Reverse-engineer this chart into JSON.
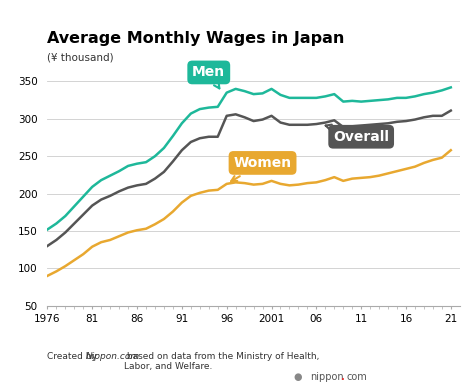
{
  "title": "Average Monthly Wages in Japan",
  "ylabel": "(¥ thousand)",
  "background_color": "#ffffff",
  "colors": {
    "men": "#1eb89a",
    "overall": "#555555",
    "women": "#e8a830"
  },
  "years": [
    1976,
    1977,
    1978,
    1979,
    1980,
    1981,
    1982,
    1983,
    1984,
    1985,
    1986,
    1987,
    1988,
    1989,
    1990,
    1991,
    1992,
    1993,
    1994,
    1995,
    1996,
    1997,
    1998,
    1999,
    2000,
    2001,
    2002,
    2003,
    2004,
    2005,
    2006,
    2007,
    2008,
    2009,
    2010,
    2011,
    2012,
    2013,
    2014,
    2015,
    2016,
    2017,
    2018,
    2019,
    2020,
    2021
  ],
  "men": [
    152,
    160,
    170,
    183,
    196,
    209,
    218,
    224,
    230,
    237,
    240,
    242,
    250,
    261,
    277,
    294,
    307,
    313,
    315,
    316,
    335,
    340,
    337,
    333,
    334,
    340,
    332,
    328,
    328,
    328,
    328,
    330,
    333,
    323,
    324,
    323,
    324,
    325,
    326,
    328,
    328,
    330,
    333,
    335,
    338,
    342
  ],
  "overall": [
    130,
    138,
    148,
    160,
    172,
    184,
    192,
    197,
    203,
    208,
    211,
    213,
    220,
    229,
    243,
    258,
    269,
    274,
    276,
    276,
    304,
    306,
    302,
    297,
    299,
    304,
    295,
    292,
    292,
    292,
    293,
    295,
    298,
    289,
    290,
    291,
    292,
    293,
    294,
    296,
    297,
    299,
    302,
    304,
    304,
    311
  ],
  "women": [
    90,
    96,
    103,
    111,
    119,
    129,
    135,
    138,
    143,
    148,
    151,
    153,
    159,
    166,
    176,
    188,
    197,
    201,
    204,
    205,
    213,
    215,
    214,
    212,
    213,
    217,
    213,
    211,
    212,
    214,
    215,
    218,
    222,
    217,
    220,
    221,
    222,
    224,
    227,
    230,
    233,
    236,
    241,
    245,
    248,
    258
  ],
  "ylim": [
    50,
    375
  ],
  "yticks": [
    50,
    100,
    150,
    200,
    250,
    300,
    350
  ],
  "xticks": [
    1976,
    1981,
    1986,
    1991,
    1996,
    2001,
    2006,
    2011,
    2016,
    2021
  ],
  "xtick_labels": [
    "1976",
    "81",
    "86",
    "91",
    "96",
    "2001",
    "06",
    "11",
    "16",
    "21"
  ],
  "footnote_part1": "Created by ",
  "footnote_italic": "Nippon.com",
  "footnote_part2": " based on data from the Ministry of Health,\nLabor, and Welfare.",
  "credit_text": "nippon",
  "credit_dot": ".",
  "credit_com": "com"
}
